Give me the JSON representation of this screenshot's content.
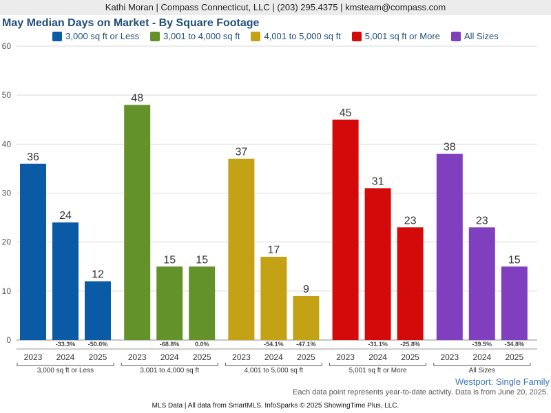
{
  "header": {
    "agent_line": "Kathi Moran | Compass Connecticut, LLC | (203) 295.4375 | kmsteam@compass.com"
  },
  "chart_data": {
    "type": "bar",
    "title": "May Median Days on Market - By Square Footage",
    "categories": [
      "2023",
      "2024",
      "2025"
    ],
    "series": [
      {
        "name": "3,000 sq ft or Less",
        "color": "#0b5aa6",
        "values": [
          36,
          24,
          12
        ],
        "changes": [
          "",
          "-33.3%",
          "-50.0%"
        ]
      },
      {
        "name": "3,001 to 4,000 sq ft",
        "color": "#63922b",
        "values": [
          48,
          15,
          15
        ],
        "changes": [
          "",
          "-68.8%",
          "0.0%"
        ]
      },
      {
        "name": "4,001 to 5,000 sq ft",
        "color": "#c3a216",
        "values": [
          37,
          17,
          9
        ],
        "changes": [
          "",
          "-54.1%",
          "-47.1%"
        ]
      },
      {
        "name": "5,001 sq ft or More",
        "color": "#d40a0a",
        "values": [
          45,
          31,
          23
        ],
        "changes": [
          "",
          "-31.1%",
          "-25.8%"
        ]
      },
      {
        "name": "All Sizes",
        "color": "#7f3fbf",
        "values": [
          38,
          23,
          15
        ],
        "changes": [
          "",
          "-39.5%",
          "-34.8%"
        ]
      }
    ],
    "ylim": [
      0,
      60
    ],
    "yticks": [
      0,
      10,
      20,
      30,
      40,
      50,
      60
    ],
    "grid": true,
    "legend": "top"
  },
  "footer": {
    "series_label": "Westport: Single Family",
    "note": "Each data point represents year-to-date activity. Data is from June 20, 2025.",
    "source": "MLS Data | All data from SmartMLS. InfoSparks © 2025 ShowingTime Plus, LLC."
  }
}
